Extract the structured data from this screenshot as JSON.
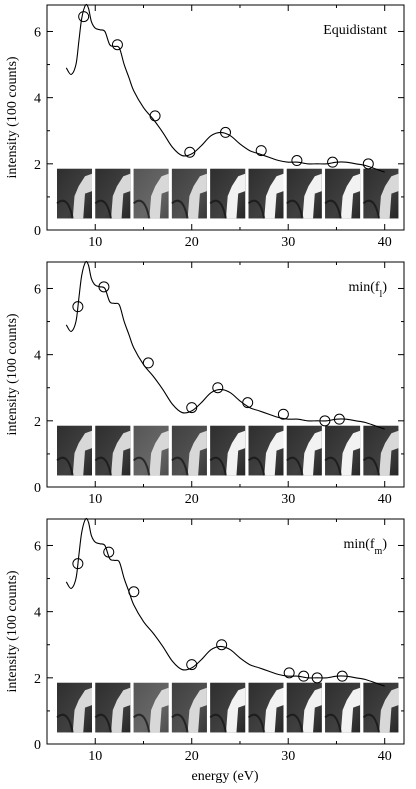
{
  "figure": {
    "ylabel": "intensity (100 counts)",
    "xlabel": "energy (eV)"
  },
  "chart_data": [
    {
      "type": "line",
      "annotation": "Equidistant",
      "annotation_sub": "",
      "xlim": [
        5,
        42
      ],
      "ylim": [
        0,
        6.8
      ],
      "xticks": [
        10,
        20,
        30,
        40
      ],
      "yticks": [
        0,
        2,
        4,
        6
      ],
      "curve": {
        "x": [
          7,
          7.5,
          8,
          8.3,
          8.6,
          9,
          9.3,
          9.6,
          10,
          10.5,
          11,
          11.5,
          12,
          12.5,
          13,
          13.5,
          14,
          15,
          16,
          17,
          18,
          19,
          20,
          21,
          22,
          23,
          24,
          25,
          26,
          27,
          28,
          29,
          30,
          31,
          32,
          33,
          34,
          35,
          36,
          37,
          38,
          39,
          40
        ],
        "y": [
          4.9,
          4.7,
          5.0,
          5.7,
          6.4,
          6.8,
          6.7,
          6.3,
          6.1,
          6.05,
          6.0,
          5.6,
          5.55,
          5.5,
          5.0,
          4.6,
          4.2,
          3.7,
          3.35,
          2.95,
          2.5,
          2.25,
          2.3,
          2.55,
          2.85,
          2.95,
          2.85,
          2.6,
          2.4,
          2.3,
          2.2,
          2.1,
          2.05,
          2.05,
          2.0,
          2.0,
          2.0,
          2.05,
          2.05,
          2.0,
          1.95,
          1.85,
          1.75
        ]
      },
      "markers": {
        "x": [
          8.8,
          12.3,
          16.2,
          19.8,
          23.5,
          27.2,
          30.9,
          34.6,
          38.3
        ],
        "y": [
          6.45,
          5.6,
          3.45,
          2.35,
          2.95,
          2.4,
          2.1,
          2.05,
          2.0
        ]
      },
      "thumbnails": 9
    },
    {
      "type": "line",
      "annotation": "min(f",
      "annotation_sub": "l",
      "xlim": [
        5,
        42
      ],
      "ylim": [
        0,
        6.8
      ],
      "xticks": [
        10,
        20,
        30,
        40
      ],
      "yticks": [
        0,
        2,
        4,
        6
      ],
      "curve": {
        "x": [
          7,
          7.5,
          8,
          8.3,
          8.6,
          9,
          9.3,
          9.6,
          10,
          10.5,
          11,
          11.5,
          12,
          12.5,
          13,
          13.5,
          14,
          15,
          16,
          17,
          18,
          19,
          20,
          21,
          22,
          23,
          24,
          25,
          26,
          27,
          28,
          29,
          30,
          31,
          32,
          33,
          34,
          35,
          36,
          37,
          38,
          39,
          40
        ],
        "y": [
          4.9,
          4.7,
          5.0,
          5.7,
          6.4,
          6.8,
          6.7,
          6.3,
          6.1,
          6.05,
          6.0,
          5.6,
          5.55,
          5.5,
          5.0,
          4.6,
          4.2,
          3.7,
          3.35,
          2.95,
          2.5,
          2.25,
          2.3,
          2.55,
          2.85,
          2.95,
          2.85,
          2.6,
          2.4,
          2.3,
          2.2,
          2.1,
          2.05,
          2.05,
          2.0,
          2.0,
          2.0,
          2.05,
          2.05,
          2.0,
          1.95,
          1.85,
          1.75
        ]
      },
      "markers": {
        "x": [
          8.2,
          10.9,
          15.5,
          20.0,
          22.7,
          25.8,
          29.5,
          33.8,
          35.3
        ],
        "y": [
          5.45,
          6.05,
          3.75,
          2.4,
          3.0,
          2.55,
          2.2,
          2.0,
          2.05
        ]
      },
      "thumbnails": 9
    },
    {
      "type": "line",
      "annotation": "min(f",
      "annotation_sub": "m",
      "xlim": [
        5,
        42
      ],
      "ylim": [
        0,
        6.8
      ],
      "xticks": [
        10,
        20,
        30,
        40
      ],
      "yticks": [
        0,
        2,
        4,
        6
      ],
      "curve": {
        "x": [
          7,
          7.5,
          8,
          8.3,
          8.6,
          9,
          9.3,
          9.6,
          10,
          10.5,
          11,
          11.5,
          12,
          12.5,
          13,
          13.5,
          14,
          15,
          16,
          17,
          18,
          19,
          20,
          21,
          22,
          23,
          24,
          25,
          26,
          27,
          28,
          29,
          30,
          31,
          32,
          33,
          34,
          35,
          36,
          37,
          38,
          39,
          40
        ],
        "y": [
          4.9,
          4.7,
          5.0,
          5.7,
          6.4,
          6.8,
          6.7,
          6.3,
          6.1,
          6.05,
          6.0,
          5.6,
          5.55,
          5.5,
          5.0,
          4.6,
          4.2,
          3.7,
          3.35,
          2.95,
          2.5,
          2.25,
          2.3,
          2.55,
          2.85,
          2.95,
          2.85,
          2.6,
          2.4,
          2.3,
          2.2,
          2.1,
          2.05,
          2.05,
          2.0,
          2.0,
          2.0,
          2.05,
          2.05,
          2.0,
          1.95,
          1.85,
          1.75
        ]
      },
      "markers": {
        "x": [
          8.2,
          11.4,
          14.0,
          20.0,
          23.1,
          30.1,
          31.6,
          33.0,
          35.6
        ],
        "y": [
          5.45,
          5.8,
          4.6,
          2.4,
          3.0,
          2.15,
          2.05,
          2.0,
          2.05
        ]
      },
      "thumbnails": 9
    }
  ]
}
